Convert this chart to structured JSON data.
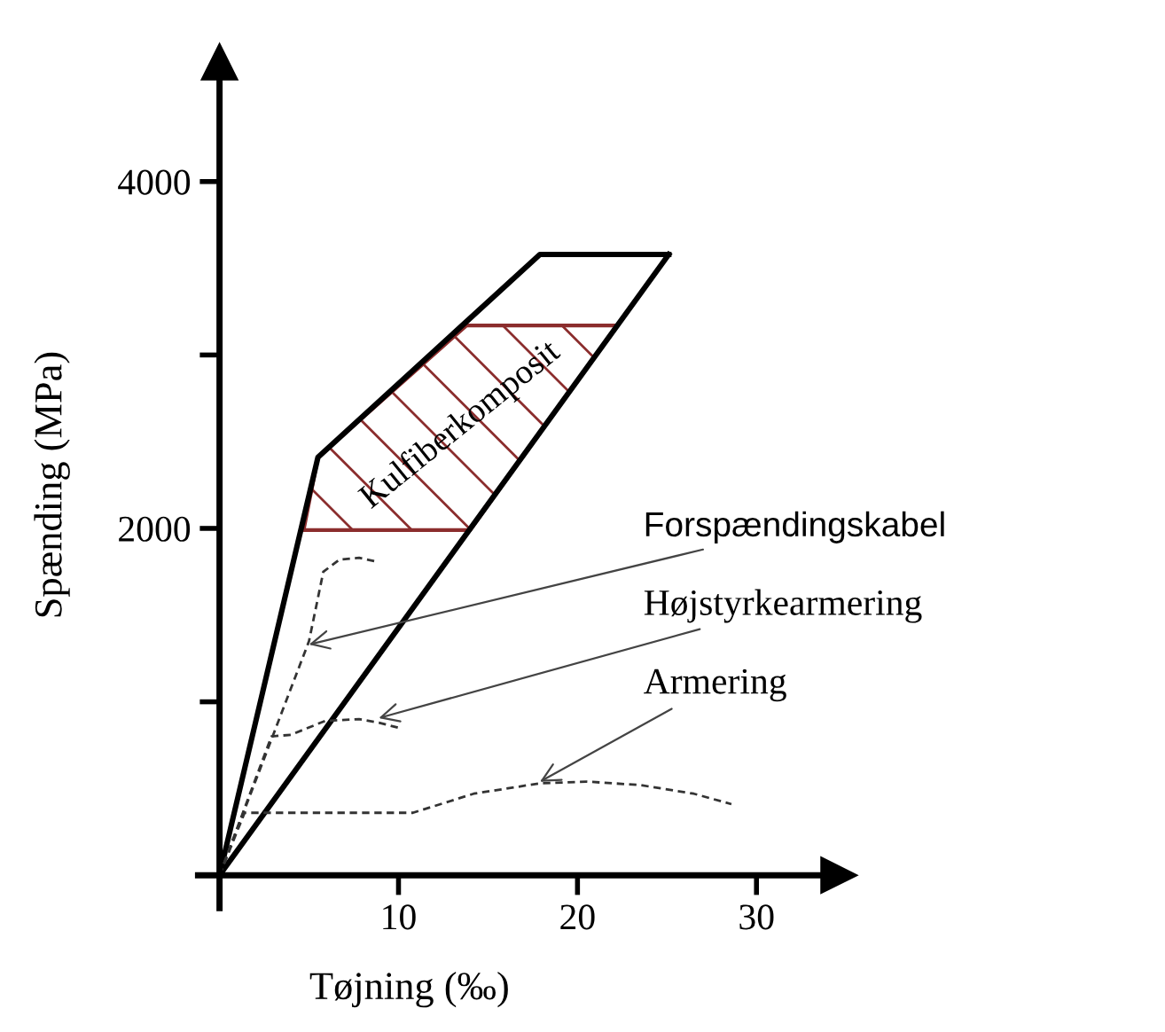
{
  "chart_data": {
    "type": "line",
    "xlabel": "Tøjning (‰)",
    "ylabel": "Spænding (MPa)",
    "xlim": [
      -1.2,
      34.6
    ],
    "ylim": [
      -190,
      4690
    ],
    "xticks": [
      10,
      20,
      30
    ],
    "yticks": [
      {
        "value": 1000,
        "label": null
      },
      2000,
      {
        "value": 3000,
        "label": null
      },
      4000
    ],
    "grid": false,
    "series": [
      {
        "color": "#000000",
        "line_style": "solid",
        "x": [
          0,
          5.5,
          17.9,
          25.1
        ],
        "values": [
          0,
          2410,
          3580,
          3580
        ]
      },
      {
        "color": "#000000",
        "line_style": "solid",
        "x": [
          0,
          25.1
        ],
        "values": [
          0,
          3580
        ]
      },
      {
        "type": "area",
        "color": "#8b2d2d",
        "x": [
          4.7,
          5.5,
          13.8,
          22.2,
          14.0,
          4.7
        ],
        "values": [
          1990,
          2410,
          3170,
          3170,
          1990,
          1990
        ]
      },
      {
        "color": "#333333",
        "line_style": "dashed",
        "x": [
          0,
          5.0,
          5.8,
          6.7,
          7.8,
          8.7
        ],
        "values": [
          0,
          1350,
          1750,
          1820,
          1830,
          1810
        ]
      },
      {
        "color": "#333333",
        "line_style": "dashed",
        "x": [
          0,
          2.9,
          4.0,
          5.9,
          7.8,
          8.9,
          10.0
        ],
        "values": [
          0,
          800,
          810,
          890,
          900,
          880,
          850
        ]
      },
      {
        "color": "#333333",
        "line_style": "dashed",
        "x": [
          0,
          1.4,
          10.8,
          14.2,
          17.9,
          20.5,
          23.5,
          26.5,
          28.6
        ],
        "values": [
          0,
          360,
          360,
          470,
          530,
          540,
          520,
          470,
          410
        ]
      }
    ],
    "annotations": [
      "Kulfiberkomposit",
      {
        "text": "Forspændingskabel",
        "x": 5.0,
        "y": 1330
      },
      {
        "text": "Højstyrkearmering",
        "x": 8.9,
        "y": 906
      },
      {
        "text": "Armering",
        "x": 17.9,
        "y": 539
      }
    ]
  }
}
